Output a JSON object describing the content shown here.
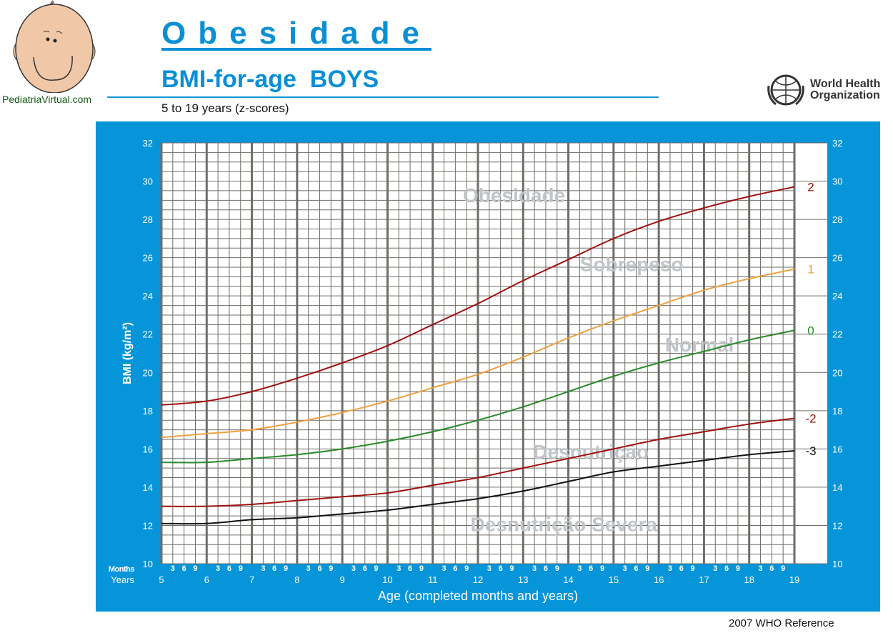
{
  "header": {
    "title": "Obesidade",
    "subtitle": "BMI-for-age  BOYS",
    "range": "5 to 19 years (z-scores)",
    "site": "PediatriaVirtual.com",
    "who_line1": "World Health",
    "who_line2": "Organization",
    "reference": "2007  WHO Reference"
  },
  "chart_data": {
    "type": "line",
    "title": "BMI-for-age BOYS",
    "xlabel": "Age (completed months and years)",
    "ylabel": "BMI (kg/m²)",
    "xlim": [
      5,
      19
    ],
    "ylim": [
      10,
      32
    ],
    "x_ticks": [
      5,
      6,
      7,
      8,
      9,
      10,
      11,
      12,
      13,
      14,
      15,
      16,
      17,
      18,
      19
    ],
    "y_ticks": [
      10,
      12,
      14,
      16,
      18,
      20,
      22,
      24,
      26,
      28,
      30,
      32
    ],
    "month_ticks": [
      "3",
      "6",
      "9"
    ],
    "months_label": "Months",
    "years_label": "Years",
    "grid": true,
    "x": [
      5,
      6,
      7,
      8,
      9,
      10,
      11,
      12,
      13,
      14,
      15,
      16,
      17,
      18,
      19
    ],
    "series": [
      {
        "name": "2",
        "color": "#a01010",
        "values": [
          18.3,
          18.5,
          19.0,
          19.7,
          20.5,
          21.4,
          22.5,
          23.6,
          24.8,
          25.9,
          27.0,
          27.9,
          28.6,
          29.2,
          29.7
        ]
      },
      {
        "name": "1",
        "color": "#f0a040",
        "values": [
          16.6,
          16.8,
          17.0,
          17.4,
          17.9,
          18.5,
          19.2,
          19.9,
          20.8,
          21.8,
          22.7,
          23.5,
          24.3,
          24.9,
          25.4
        ]
      },
      {
        "name": "0",
        "color": "#2a8a2a",
        "values": [
          15.3,
          15.3,
          15.5,
          15.7,
          16.0,
          16.4,
          16.9,
          17.5,
          18.2,
          19.0,
          19.8,
          20.5,
          21.1,
          21.7,
          22.2
        ]
      },
      {
        "name": "-2",
        "color": "#a01010",
        "values": [
          13.0,
          13.0,
          13.1,
          13.3,
          13.5,
          13.7,
          14.1,
          14.5,
          15.0,
          15.5,
          16.0,
          16.5,
          16.9,
          17.3,
          17.6
        ]
      },
      {
        "name": "-3",
        "color": "#111111",
        "values": [
          12.1,
          12.1,
          12.3,
          12.4,
          12.6,
          12.8,
          13.1,
          13.4,
          13.8,
          14.3,
          14.8,
          15.1,
          15.4,
          15.7,
          15.9
        ]
      }
    ],
    "annotations": [
      {
        "text": "Obesidade",
        "x": 12.8,
        "y": 28.9
      },
      {
        "text": "Sobrepeso",
        "x": 15.4,
        "y": 25.3
      },
      {
        "text": "Normal",
        "x": 16.9,
        "y": 21.1
      },
      {
        "text": "Desnutrição",
        "x": 14.5,
        "y": 15.5
      },
      {
        "text": "Desnutrição Severa",
        "x": 13.9,
        "y": 11.7
      }
    ]
  }
}
